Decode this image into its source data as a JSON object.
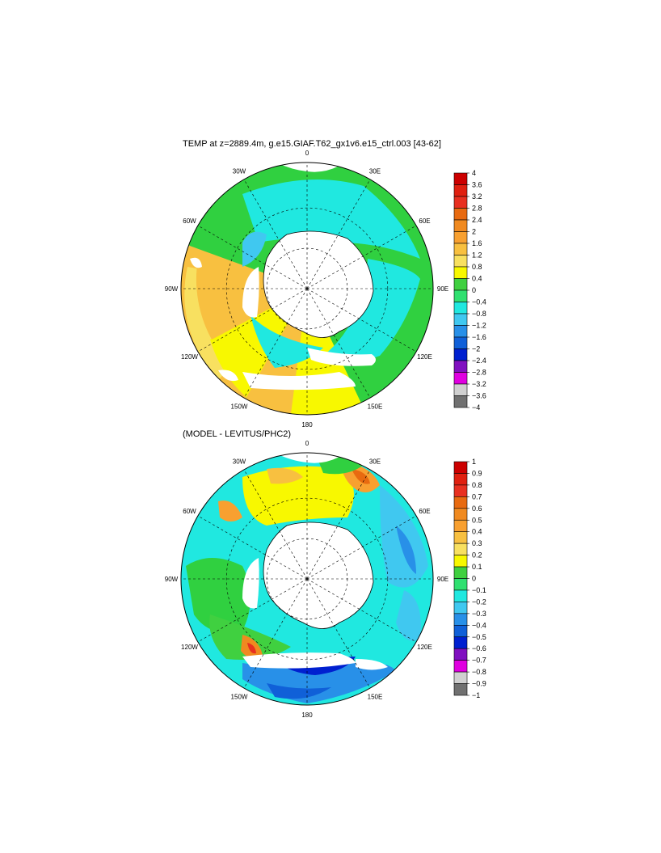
{
  "figure": {
    "title_top": "TEMP at z=2889.4m, g.e15.GIAF.T62_gx1v6.e15_ctrl.003 [43-62]",
    "title_bottom": "(MODEL - LEVITUS/PHC2)"
  },
  "chart_data": [
    {
      "type": "heatmap",
      "projection": "south-polar-stereographic",
      "title": "TEMP at z=2889.4m, g.e15.GIAF.T62_gx1v6.e15_ctrl.003 [43-62]",
      "longitude_labels": [
        "0",
        "30E",
        "60E",
        "90E",
        "120E",
        "150E",
        "180",
        "150W",
        "120W",
        "90W",
        "60W",
        "30W"
      ],
      "colorbar": {
        "labels": [
          "4",
          "3.6",
          "3.2",
          "2.8",
          "2.4",
          "2",
          "1.6",
          "1.2",
          "0.8",
          "0.4",
          "0",
          "−0.4",
          "−0.8",
          "−1.2",
          "−1.6",
          "−2",
          "−2.4",
          "−2.8",
          "−3.2",
          "−3.6",
          "−4"
        ],
        "colors": [
          "#cc0000",
          "#e02010",
          "#e83020",
          "#e86a10",
          "#f08a20",
          "#f8a030",
          "#f8c040",
          "#f8e060",
          "#f8f800",
          "#40d040",
          "#30e070",
          "#20e8e0",
          "#40c8f0",
          "#2890e8",
          "#1060d8",
          "#0020d0",
          "#8010c0",
          "#e000e0",
          "#d0d0d0",
          "#707070"
        ]
      }
    },
    {
      "type": "heatmap",
      "projection": "south-polar-stereographic",
      "title": "(MODEL - LEVITUS/PHC2)",
      "longitude_labels": [
        "0",
        "30E",
        "60E",
        "90E",
        "120E",
        "150E",
        "180",
        "150W",
        "120W",
        "90W",
        "60W",
        "30W"
      ],
      "colorbar": {
        "labels": [
          "1",
          "0.9",
          "0.8",
          "0.7",
          "0.6",
          "0.5",
          "0.4",
          "0.3",
          "0.2",
          "0.1",
          "0",
          "−0.1",
          "−0.2",
          "−0.3",
          "−0.4",
          "−0.5",
          "−0.6",
          "−0.7",
          "−0.8",
          "−0.9",
          "−1"
        ],
        "colors": [
          "#cc0000",
          "#e02010",
          "#e83020",
          "#e86a10",
          "#f08a20",
          "#f8a030",
          "#f8c040",
          "#f8e060",
          "#f8f800",
          "#40d040",
          "#30e070",
          "#20e8e0",
          "#40c8f0",
          "#2890e8",
          "#1060d8",
          "#0020d0",
          "#8010c0",
          "#e000e0",
          "#d0d0d0",
          "#707070"
        ]
      }
    }
  ]
}
